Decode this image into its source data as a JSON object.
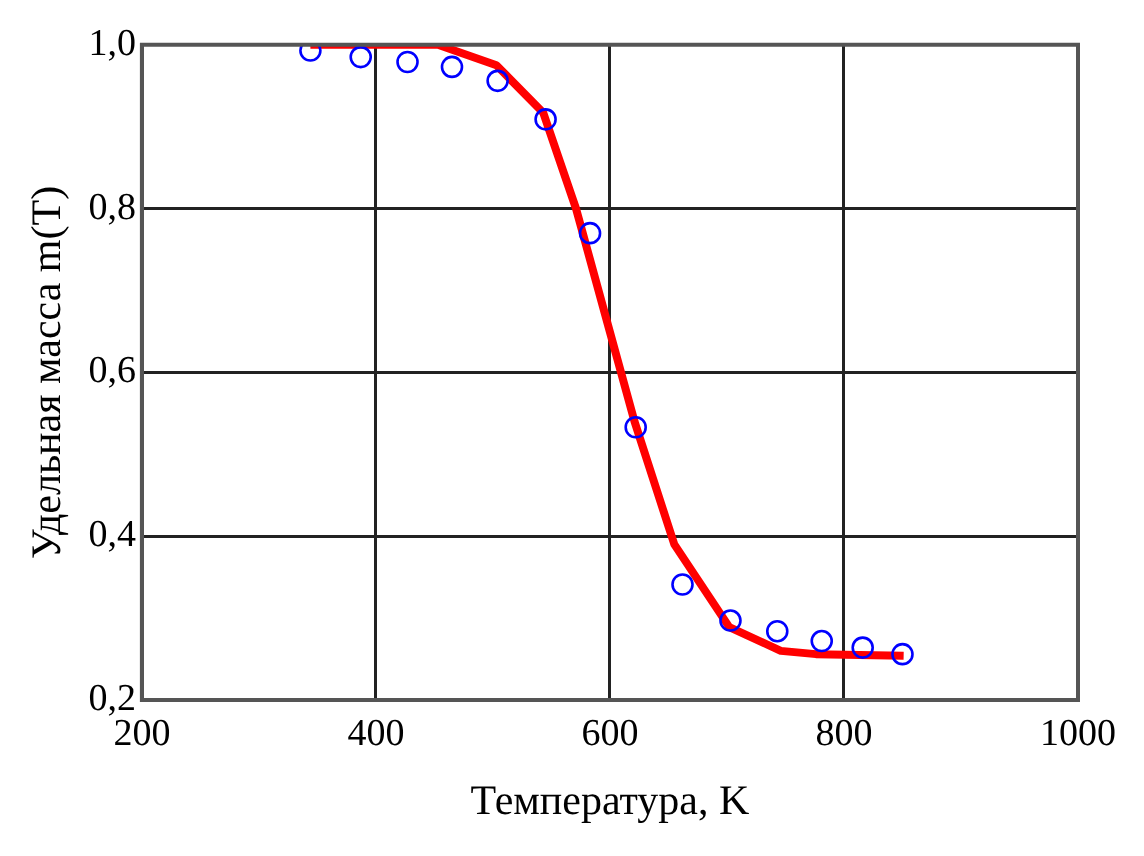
{
  "chart_data": {
    "type": "scatter",
    "xlabel": "Температура, K",
    "ylabel": "Удельная масса m(T)",
    "xlim": [
      200,
      1000
    ],
    "xticks": [
      200,
      400,
      600,
      800,
      1000
    ],
    "ylim": [
      0.2,
      1.0
    ],
    "yticks": [
      {
        "value": 0.2,
        "label": "0,2"
      },
      {
        "value": 0.4,
        "label": "0,4"
      },
      {
        "value": 0.6,
        "label": "0,6"
      },
      {
        "value": 0.8,
        "label": "0,8"
      },
      {
        "value": 1.0,
        "label": "1,0"
      }
    ],
    "grid": true,
    "legend": false,
    "series": [
      {
        "color": "#0000ff",
        "marker": "circle",
        "x": [
          344,
          387,
          427,
          465,
          504,
          545,
          583,
          622,
          662,
          703,
          743,
          781,
          816,
          850
        ],
        "values": [
          0.993,
          0.985,
          0.979,
          0.973,
          0.956,
          0.909,
          0.77,
          0.533,
          0.341,
          0.297,
          0.284,
          0.272,
          0.264,
          0.256
        ]
      },
      {
        "type": "line",
        "color": "#ff0000",
        "marker": "none",
        "line_style": "solid",
        "x": [
          344,
          453,
          503,
          543,
          571,
          596,
          621,
          655,
          702,
          746,
          776,
          851
        ],
        "values": [
          1.0,
          1.0,
          0.975,
          0.917,
          0.8,
          0.67,
          0.54,
          0.39,
          0.289,
          0.26,
          0.256,
          0.254
        ]
      }
    ]
  }
}
